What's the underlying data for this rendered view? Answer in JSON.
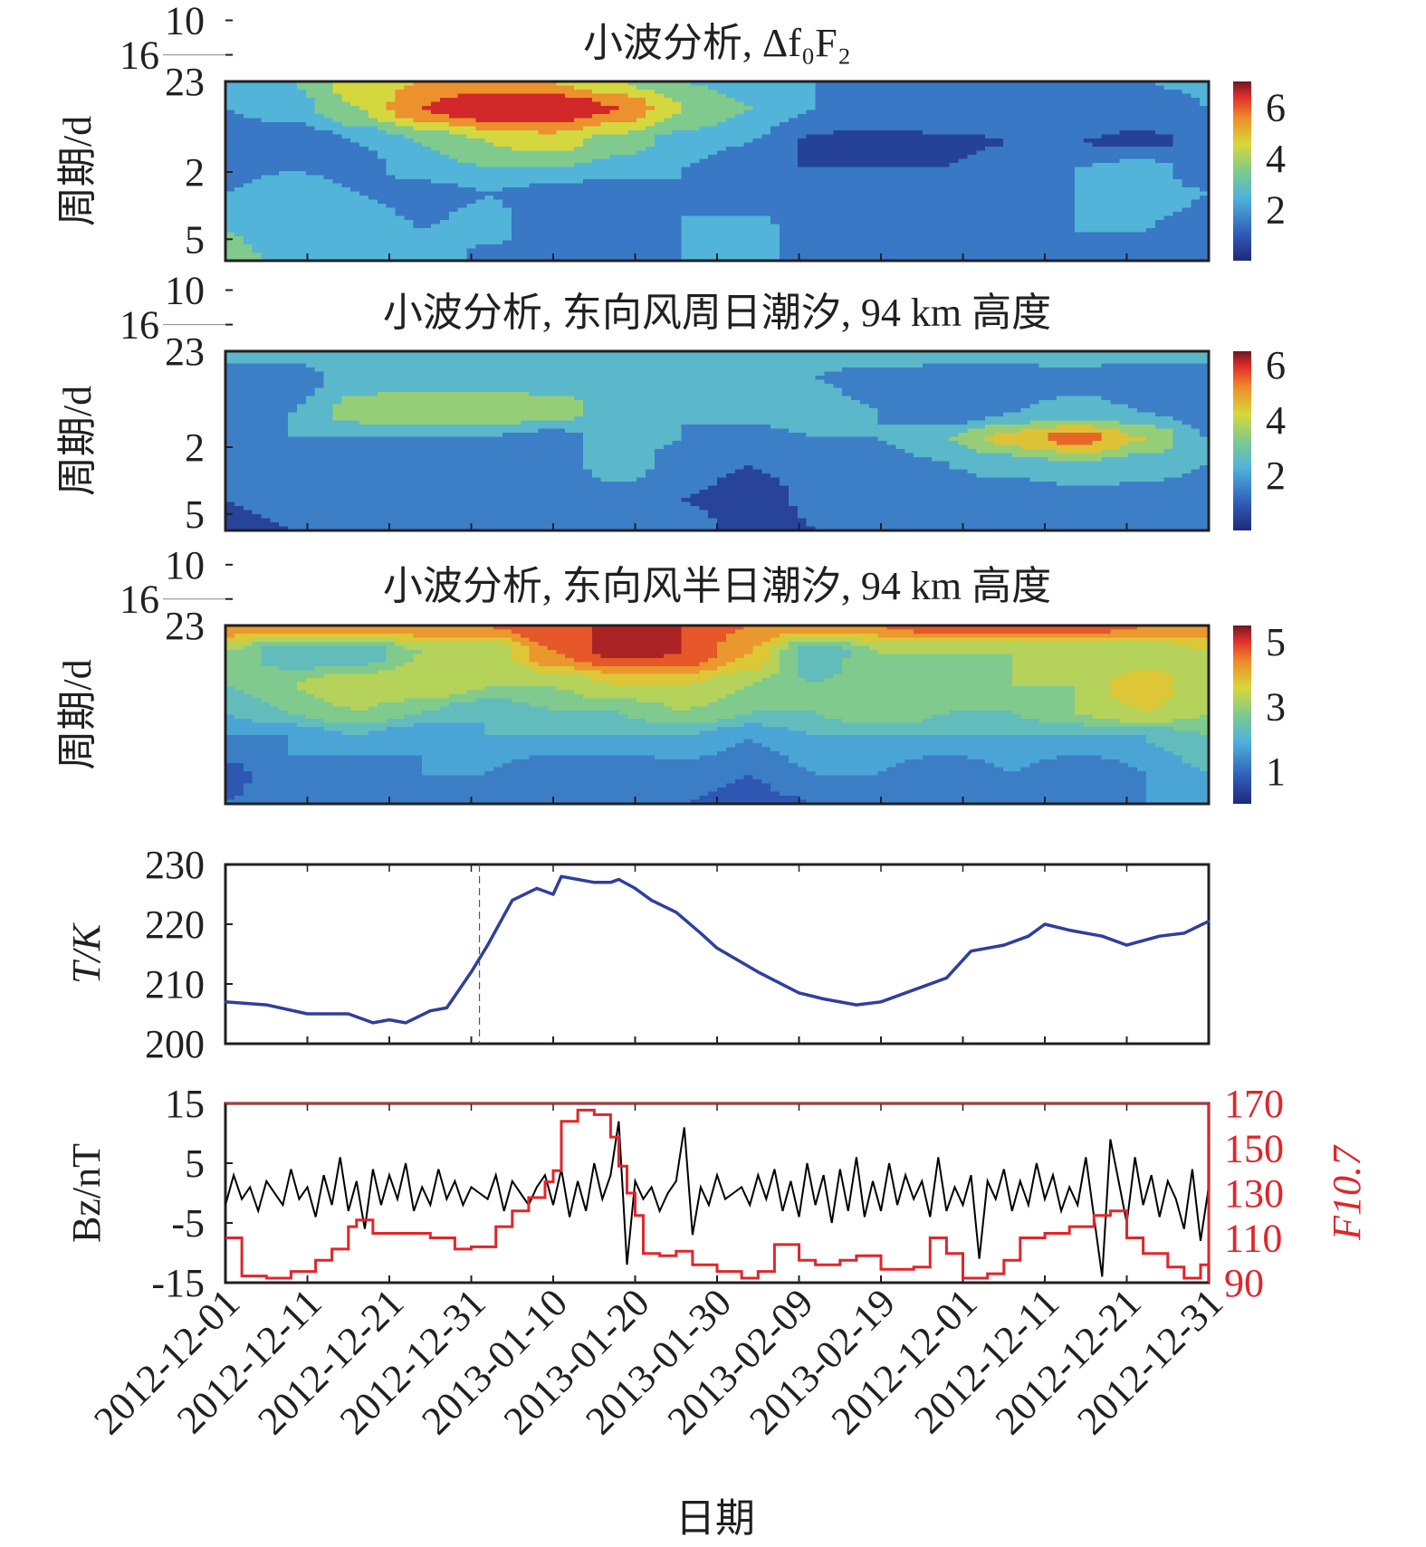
{
  "xlabel": "日期",
  "x_tick_labels": [
    "2012-12-01",
    "2012-12-11",
    "2012-12-21",
    "2012-12-31",
    "2013-01-10",
    "2013-01-20",
    "2013-01-30",
    "2013-02-09",
    "2013-02-19",
    "2012-12-01",
    "2012-12-11",
    "2012-12-21",
    "2012-12-31"
  ],
  "chart_data": [
    {
      "type": "heatmap",
      "title": "小波分析, Δf₀F₂",
      "ylabel": "周期/d",
      "yscale": "log",
      "yticks": [
        23,
        16,
        10,
        5,
        2
      ],
      "ylim": [
        2,
        23
      ],
      "xlim": [
        0,
        120
      ],
      "periods": [
        23,
        16,
        10,
        7,
        5,
        3,
        2
      ],
      "colorbar": {
        "colormap": "jet",
        "range": [
          0,
          7
        ],
        "level_step": 1,
        "ticks": [
          6,
          4,
          2
        ]
      },
      "values": [
        [
          2,
          3,
          4.5,
          5,
          5.5,
          5,
          4,
          3,
          2.5,
          2,
          1.2,
          2,
          2,
          2,
          2,
          2.2
        ],
        [
          2,
          2.5,
          4,
          6,
          7,
          7,
          6,
          4,
          3,
          2,
          2,
          2,
          1.5,
          1.5,
          1.5,
          2
        ],
        [
          1.5,
          1,
          2,
          3,
          4,
          4.5,
          3.5,
          2.5,
          2,
          0.8,
          0.5,
          0.8,
          1,
          1,
          0.8,
          1.2
        ],
        [
          1.5,
          2,
          1.5,
          2.5,
          3,
          3,
          2.5,
          2,
          1,
          1,
          1,
          1,
          1.5,
          2,
          2.5,
          1.2
        ],
        [
          2,
          3,
          2,
          1.5,
          2,
          1.5,
          1,
          2,
          1.2,
          2,
          1.2,
          2,
          1.5,
          2,
          2.5,
          2
        ],
        [
          3,
          2.5,
          3,
          2,
          2.5,
          1,
          1.2,
          2,
          2.5,
          1.2,
          2,
          1.5,
          1,
          2,
          2,
          1.5
        ],
        [
          3.5,
          2.5,
          2.5,
          3,
          1.5,
          1,
          1.5,
          2,
          2.5,
          1.5,
          2,
          1,
          1.5,
          1,
          1.5,
          1
        ]
      ]
    },
    {
      "type": "heatmap",
      "title": "小波分析, 东向风周日潮汐, 94 km 高度",
      "ylabel": "周期/d",
      "yscale": "log",
      "yticks": [
        23,
        16,
        10,
        5,
        2
      ],
      "ylim": [
        2,
        23
      ],
      "xlim": [
        0,
        120
      ],
      "periods": [
        23,
        16,
        10,
        7,
        5,
        3,
        2
      ],
      "colorbar": {
        "colormap": "jet",
        "range": [
          0,
          6.5
        ],
        "level_step": 1,
        "ticks": [
          6,
          4,
          2
        ]
      },
      "values": [
        [
          2.5,
          2.5,
          3,
          3,
          3,
          2.5,
          2.5,
          2,
          2.5,
          2.5,
          3,
          3,
          3,
          3,
          2.5,
          2.5
        ],
        [
          1,
          1.5,
          2.5,
          2.5,
          2.5,
          2.5,
          2.5,
          2.5,
          2.5,
          2,
          1.5,
          1,
          1,
          1.5,
          1,
          1.5
        ],
        [
          1.5,
          2,
          3.5,
          4,
          3.8,
          3.5,
          2.5,
          2,
          2.5,
          2.5,
          2,
          1,
          2,
          2.5,
          2,
          1.5
        ],
        [
          1.5,
          2,
          2,
          2,
          2,
          1.5,
          2.5,
          2,
          1.5,
          2,
          2,
          3,
          4.5,
          5.5,
          4,
          2
        ],
        [
          1.5,
          1.5,
          1.5,
          1,
          1.5,
          1.5,
          2.5,
          1.5,
          1,
          1.5,
          1.5,
          2,
          2.5,
          3,
          2.5,
          2
        ],
        [
          1,
          1.5,
          1.5,
          1,
          1,
          1.5,
          1.5,
          1,
          0.5,
          1.2,
          1.5,
          1.5,
          1,
          1.5,
          1.5,
          1.5
        ],
        [
          0.5,
          1,
          1.5,
          1,
          1,
          1.5,
          1,
          1.5,
          0.5,
          1,
          1.5,
          1,
          1.5,
          1,
          1.5,
          1.5
        ]
      ]
    },
    {
      "type": "heatmap",
      "title": "小波分析, 东向风半日潮汐, 94 km 高度",
      "ylabel": "周期/d",
      "yscale": "log",
      "yticks": [
        23,
        16,
        10,
        5,
        2
      ],
      "ylim": [
        2,
        23
      ],
      "xlim": [
        0,
        120
      ],
      "periods": [
        23,
        16,
        10,
        7,
        5,
        3,
        2
      ],
      "colorbar": {
        "colormap": "jet",
        "range": [
          0,
          5.5
        ],
        "level_step": 0.5,
        "ticks": [
          5,
          3,
          1
        ]
      },
      "values": [
        [
          4.5,
          4.5,
          4.5,
          4.5,
          4.5,
          5,
          5,
          5,
          4.5,
          4.5,
          4.5,
          5,
          5,
          5,
          4.5,
          4.5
        ],
        [
          3,
          2,
          2,
          3,
          3,
          4.5,
          5.2,
          5,
          4,
          2,
          3,
          3,
          3,
          3,
          3,
          3.5
        ],
        [
          2.5,
          3,
          3.5,
          3.5,
          3,
          3,
          3.5,
          3.5,
          3,
          2.5,
          3,
          2.5,
          3,
          3,
          4,
          3
        ],
        [
          2,
          2.5,
          3,
          2.5,
          2,
          2.5,
          2.5,
          3,
          2.5,
          2.5,
          3,
          2.5,
          2.5,
          3,
          3.5,
          3
        ],
        [
          1.5,
          1.5,
          2,
          1.5,
          2,
          2,
          2,
          2,
          1.5,
          2,
          2,
          2,
          2,
          2,
          2,
          2.5
        ],
        [
          0.8,
          1.5,
          1,
          1.5,
          1.5,
          1,
          1,
          1.2,
          1,
          1.5,
          1.5,
          1,
          1.5,
          1,
          1.5,
          2
        ],
        [
          1,
          1.2,
          1,
          1.2,
          1,
          1,
          1.2,
          1,
          0.8,
          1,
          1.2,
          1.2,
          1,
          1,
          1.5,
          2
        ]
      ]
    },
    {
      "type": "line",
      "ylabel": "T/K",
      "ylim": [
        200,
        230
      ],
      "yticks": [
        230,
        220,
        210,
        200
      ],
      "xlim": [
        0,
        120
      ],
      "marker_line_x": 31,
      "color": "#2e3f9e",
      "x": [
        0,
        5,
        10,
        15,
        18,
        20,
        22,
        25,
        27,
        30,
        32,
        35,
        38,
        40,
        41,
        45,
        47,
        48,
        50,
        52,
        55,
        58,
        60,
        65,
        70,
        73,
        77,
        80,
        85,
        88,
        91,
        95,
        98,
        100,
        103,
        107,
        110,
        114,
        117,
        120
      ],
      "y": [
        207,
        206.5,
        205,
        205,
        203.5,
        204,
        203.5,
        205.5,
        206,
        212,
        216.5,
        224,
        226,
        225,
        228,
        227,
        227,
        227.5,
        226,
        224,
        222,
        218.5,
        216,
        212,
        208.5,
        207.5,
        206.5,
        207,
        209.5,
        211,
        215.5,
        216.5,
        218,
        220,
        219,
        218,
        216.5,
        218,
        218.5,
        220.5
      ]
    },
    {
      "type": "line",
      "ylabel": "Bz/nT",
      "ylabel_right": "F10.7",
      "ylim": [
        -15,
        15
      ],
      "yticks": [
        15,
        5,
        -5,
        -15
      ],
      "ylim_right": [
        90,
        170
      ],
      "yticks_right": [
        170,
        150,
        130,
        110,
        90
      ],
      "xlim": [
        0,
        120
      ],
      "series": [
        {
          "name": "Bz",
          "color": "#000000",
          "axis": "left",
          "y": [
            -2,
            3,
            -1,
            1,
            -3,
            2,
            0,
            -2,
            4,
            -1,
            1,
            -4,
            3,
            -2,
            6,
            -3,
            2,
            -6,
            4,
            -2,
            3,
            -1,
            5,
            -3,
            1,
            -2,
            4,
            -1,
            2,
            -2,
            1,
            0,
            -1,
            3,
            -3,
            2,
            0,
            -2,
            1,
            3,
            -2,
            4,
            -4,
            2,
            -3,
            5,
            -1,
            3,
            12,
            -12,
            2,
            -1,
            1,
            -3,
            0,
            2,
            11,
            -7,
            1,
            -2,
            3,
            -1,
            0,
            1,
            -2,
            3,
            -1,
            4,
            -3,
            2,
            -4,
            5,
            -2,
            3,
            -5,
            4,
            -3,
            6,
            -4,
            2,
            -3,
            5,
            -2,
            3,
            -1,
            2,
            -4,
            6,
            -3,
            1,
            -2,
            3,
            -11,
            2,
            -1,
            4,
            -3,
            2,
            -2,
            5,
            -1,
            3,
            -3,
            1,
            -2,
            6,
            -4,
            -14,
            9,
            2,
            -5,
            6,
            -2,
            3,
            -4,
            2,
            -1,
            -6,
            4,
            -8,
            1
          ]
        },
        {
          "name": "F10.7",
          "color": "#e0262b",
          "axis": "right",
          "step": true,
          "x": [
            0,
            2,
            5,
            8,
            11,
            13,
            15,
            16,
            18,
            20,
            25,
            28,
            30,
            33,
            35,
            37,
            39,
            40,
            41,
            43,
            45,
            47,
            48,
            49,
            50,
            51,
            53,
            55,
            57,
            60,
            63,
            65,
            67,
            70,
            72,
            75,
            77,
            80,
            84,
            86,
            88,
            90,
            93,
            95,
            97,
            100,
            103,
            106,
            108,
            110,
            112,
            115,
            117,
            119,
            120
          ],
          "y": [
            110,
            93,
            92,
            95,
            100,
            105,
            115,
            118,
            112,
            112,
            110,
            105,
            106,
            115,
            122,
            128,
            135,
            140,
            162,
            167,
            165,
            155,
            142,
            130,
            120,
            103,
            102,
            104,
            98,
            95,
            92,
            95,
            107,
            100,
            98,
            100,
            102,
            96,
            97,
            110,
            103,
            92,
            94,
            100,
            110,
            112,
            115,
            120,
            122,
            110,
            103,
            97,
            92,
            98,
            130
          ]
        }
      ]
    }
  ]
}
